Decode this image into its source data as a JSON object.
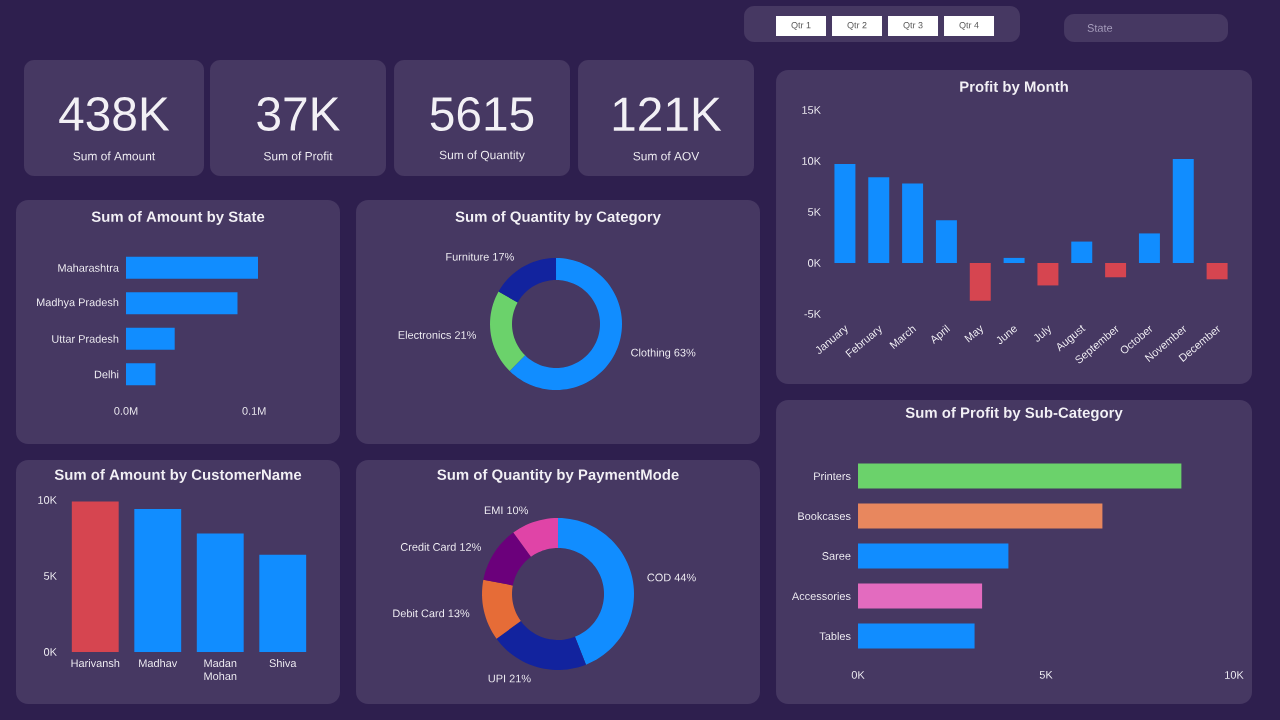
{
  "chart_data": [
    {
      "type": "other",
      "annotations": [
        "438K",
        "Sum of Amount",
        "37K",
        "Sum of Profit",
        "5615",
        "Sum of Quantity",
        "121K",
        "Sum of AOV",
        "Qtr 1",
        "Qtr 2",
        "Qtr 3",
        "Qtr 4",
        "State"
      ]
    },
    {
      "type": "bar",
      "title": "Sum of Amount by State",
      "orientation": "horizontal",
      "categories": [
        "Maharashtra",
        "Madhya Pradesh",
        "Uttar Pradesh",
        "Delhi"
      ],
      "values": [
        0.103,
        0.087,
        0.038,
        0.023
      ],
      "color": "#118dff",
      "xlim": [
        0,
        0.103
      ],
      "xticks": [
        {
          "value": 0,
          "label": "0.0M"
        },
        {
          "value": 0.1,
          "label": "0.1M"
        }
      ]
    },
    {
      "type": "donut",
      "title": "Sum of Quantity by Category",
      "categories": [
        "Clothing",
        "Electronics",
        "Furniture"
      ],
      "values": [
        63,
        21,
        17
      ],
      "colors": [
        "#118dff",
        "#6bd26b",
        "#12239e"
      ],
      "value_labels": [
        "63%",
        "21%",
        "17%"
      ]
    },
    {
      "type": "bar",
      "title": "Profit by Month",
      "categories": [
        "January",
        "February",
        "March",
        "April",
        "May",
        "June",
        "July",
        "August",
        "September",
        "October",
        "November",
        "December"
      ],
      "values": [
        9700,
        8400,
        7800,
        4200,
        -3700,
        500,
        -2200,
        2100,
        -1400,
        2900,
        10200,
        -1600
      ],
      "colors": [
        "#118dff",
        "#118dff",
        "#118dff",
        "#118dff",
        "#d64550",
        "#118dff",
        "#d64550",
        "#118dff",
        "#d64550",
        "#118dff",
        "#118dff",
        "#d64550"
      ],
      "ylim": [
        -5000,
        15000
      ],
      "yticks": [
        {
          "value": -5000,
          "label": "-5K"
        },
        {
          "value": 0,
          "label": "0K"
        },
        {
          "value": 5000,
          "label": "5K"
        },
        {
          "value": 10000,
          "label": "10K"
        },
        {
          "value": 15000,
          "label": "15K"
        }
      ]
    },
    {
      "type": "bar",
      "title": "Sum of Amount by CustomerName",
      "categories": [
        "Harivansh",
        "Madhav",
        "Madan Mohan",
        "Shiva"
      ],
      "values": [
        9900,
        9400,
        7800,
        6400
      ],
      "colors": [
        "#d64550",
        "#118dff",
        "#118dff",
        "#118dff"
      ],
      "ylim": [
        0,
        10000
      ],
      "yticks": [
        {
          "value": 0,
          "label": "0K"
        },
        {
          "value": 5000,
          "label": "5K"
        },
        {
          "value": 10000,
          "label": "10K"
        }
      ]
    },
    {
      "type": "donut",
      "title": "Sum of Quantity by PaymentMode",
      "categories": [
        "COD",
        "UPI",
        "Debit Card",
        "Credit Card",
        "EMI"
      ],
      "values": [
        44,
        21,
        13,
        12,
        10
      ],
      "colors": [
        "#118dff",
        "#12239e",
        "#e66c37",
        "#6b007b",
        "#e044a7"
      ],
      "value_labels": [
        "44%",
        "21%",
        "13%",
        "12%",
        "10%"
      ]
    },
    {
      "type": "bar",
      "title": "Sum of Profit by Sub-Category",
      "orientation": "horizontal",
      "categories": [
        "Printers",
        "Bookcases",
        "Saree",
        "Accessories",
        "Tables"
      ],
      "values": [
        8600,
        6500,
        4000,
        3300,
        3100
      ],
      "colors": [
        "#6bd26b",
        "#e8875e",
        "#118dff",
        "#e36bbf",
        "#118dff"
      ],
      "xlim": [
        0,
        10000
      ],
      "xticks": [
        {
          "value": 0,
          "label": "0K"
        },
        {
          "value": 5000,
          "label": "5K"
        },
        {
          "value": 10000,
          "label": "10K"
        }
      ]
    }
  ]
}
